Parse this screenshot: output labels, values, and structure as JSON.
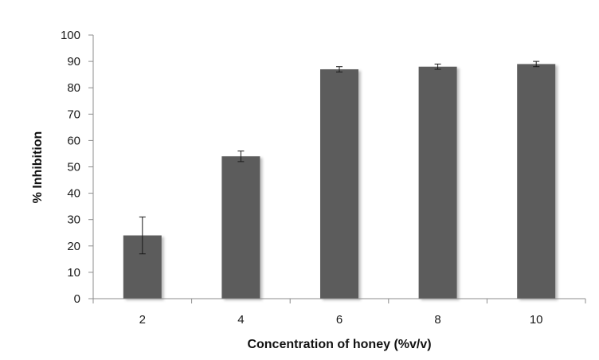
{
  "chart_data": {
    "type": "bar",
    "title": "",
    "xlabel": "Concentration of honey (%v/v)",
    "ylabel": "% Inhibition",
    "categories": [
      "2",
      "4",
      "6",
      "8",
      "10"
    ],
    "values": [
      24,
      54,
      87,
      88,
      89
    ],
    "errors": [
      7,
      2,
      1,
      1,
      1
    ],
    "ylim": [
      0,
      100
    ],
    "yticks": [
      0,
      10,
      20,
      30,
      40,
      50,
      60,
      70,
      80,
      90,
      100
    ],
    "grid": false,
    "legend": "none",
    "bar_color": "#5c5c5c"
  }
}
